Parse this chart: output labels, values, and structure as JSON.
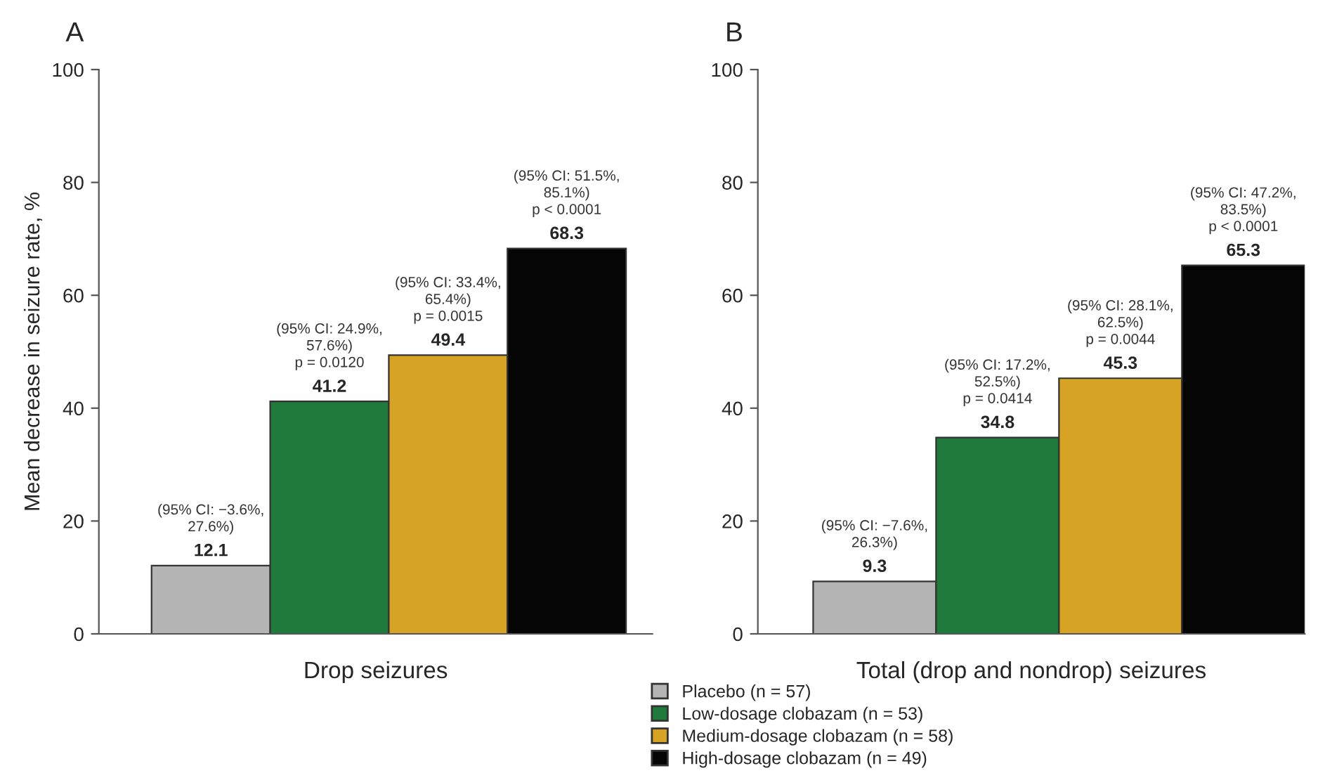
{
  "chart_data": [
    {
      "type": "bar",
      "title": "A",
      "ylabel": "Mean decrease in seizure rate, %",
      "xlabel": "Drop seizures",
      "categories": [
        null
      ],
      "series": [
        {
          "name": "Placebo (n = 57)",
          "color": "#b4b4b4",
          "values": [
            12.1
          ]
        },
        {
          "name": "Low-dosage clobazam (n = 53)",
          "color": "#1f7a3c",
          "values": [
            41.2
          ]
        },
        {
          "name": "Medium-dosage clobazam (n = 58)",
          "color": "#d6a324",
          "values": [
            49.4
          ]
        },
        {
          "name": "High-dosage clobazam (n = 49)",
          "color": "#050505",
          "values": [
            68.3
          ]
        }
      ],
      "annotations": [
        "(95% CI: −3.6%,\n27.6%)",
        "(95% CI: 24.9%,\n57.6%)\np = 0.0120",
        "(95% CI: 33.4%,\n65.4%)\np = 0.0015",
        "(95% CI: 51.5%,\n85.1%)\np < 0.0001"
      ],
      "ylim": [
        0,
        100
      ],
      "yticks": [
        0,
        20,
        40,
        60,
        80,
        100
      ],
      "data_labels": true,
      "grid": false,
      "legend": "bottom"
    },
    {
      "type": "bar",
      "title": "B",
      "xlabel": "Total (drop and nondrop) seizures",
      "categories": [
        null,
        null,
        null,
        null
      ],
      "values": [
        9.3,
        34.8,
        45.3,
        65.3
      ],
      "colors": [
        "#b4b4b4",
        "#1f7a3c",
        "#d6a324",
        "#050505"
      ],
      "annotations": [
        "(95% CI: −7.6%,\n26.3%)",
        "(95% CI: 17.2%,\n52.5%)\np = 0.0414",
        "(95% CI: 28.1%,\n62.5%)\np = 0.0044",
        "(95% CI: 47.2%,\n83.5%)\np < 0.0001"
      ],
      "ylim": [
        0,
        100
      ],
      "yticks": [
        0,
        20,
        40,
        60,
        80,
        100
      ],
      "data_labels": true,
      "grid": false
    }
  ]
}
